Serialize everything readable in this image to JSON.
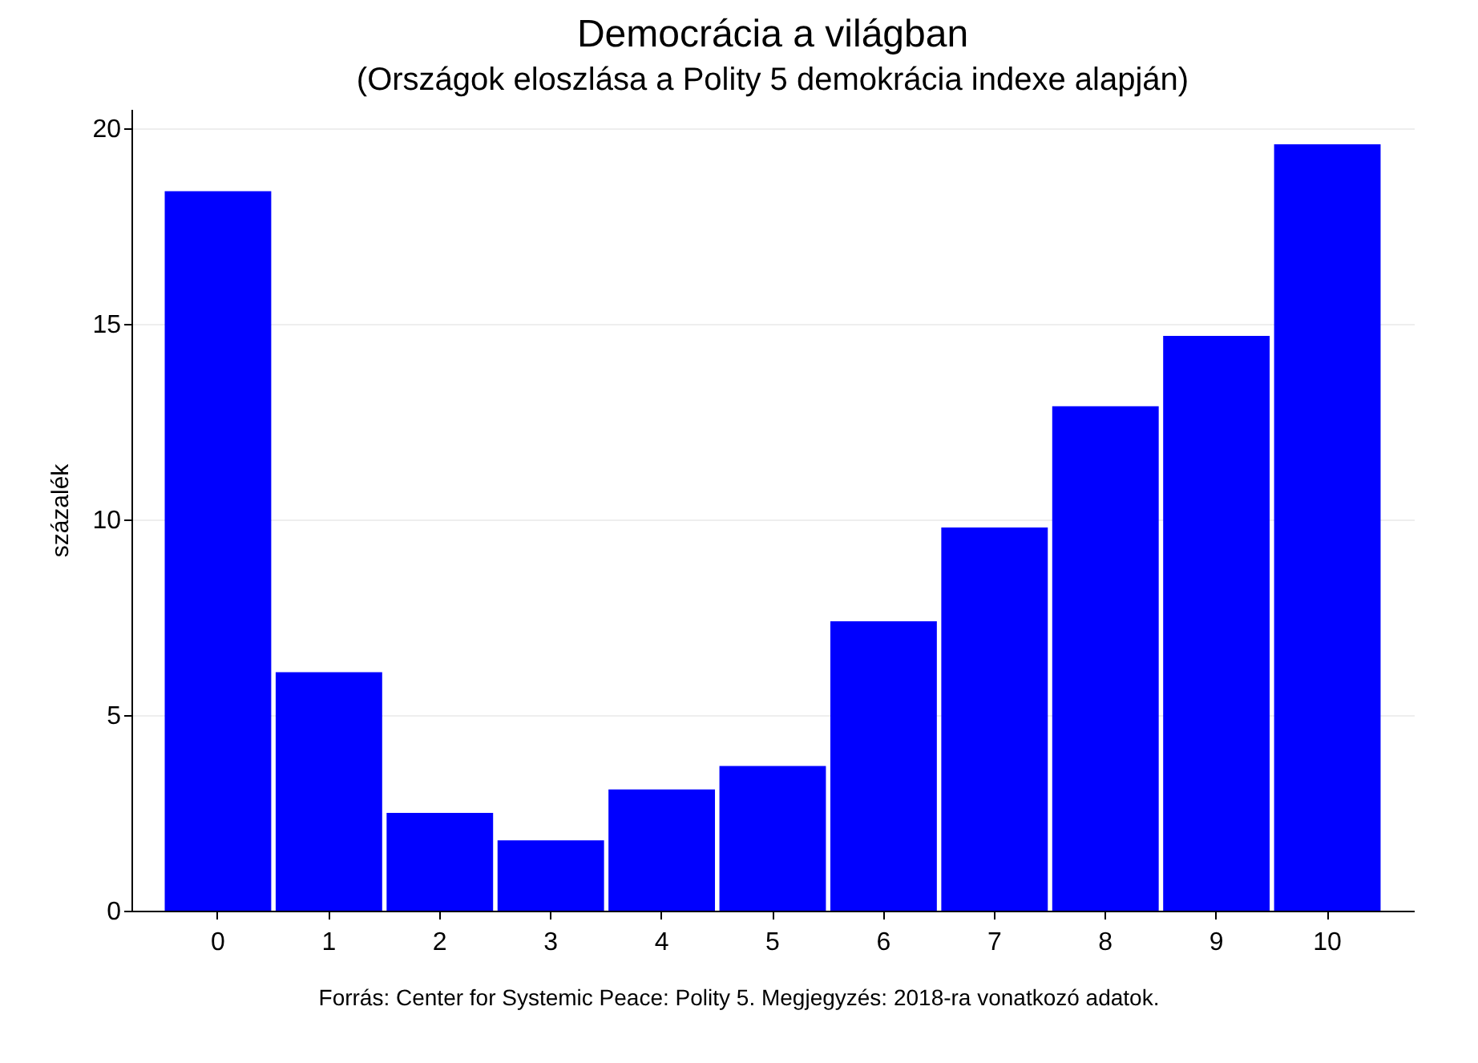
{
  "chart_data": {
    "type": "bar",
    "title": "Democrácia a világban",
    "subtitle": "(Országok eloszlása a Polity 5 demokrácia indexe alapján)",
    "ylabel": "százalék",
    "categories": [
      "0",
      "1",
      "2",
      "3",
      "4",
      "5",
      "6",
      "7",
      "8",
      "9",
      "10"
    ],
    "values": [
      18.4,
      6.1,
      2.5,
      1.8,
      3.1,
      3.7,
      7.4,
      9.8,
      12.9,
      14.7,
      19.6
    ],
    "color": "#0000ff",
    "ylim": [
      0,
      20.5
    ],
    "yticks": [
      0,
      5,
      10,
      15,
      20
    ],
    "grid": "y",
    "annotations": [
      "Forrás: Center for Systemic Peace: Polity 5. Megjegyzés: 2018-ra vonatkozó adatok."
    ]
  }
}
